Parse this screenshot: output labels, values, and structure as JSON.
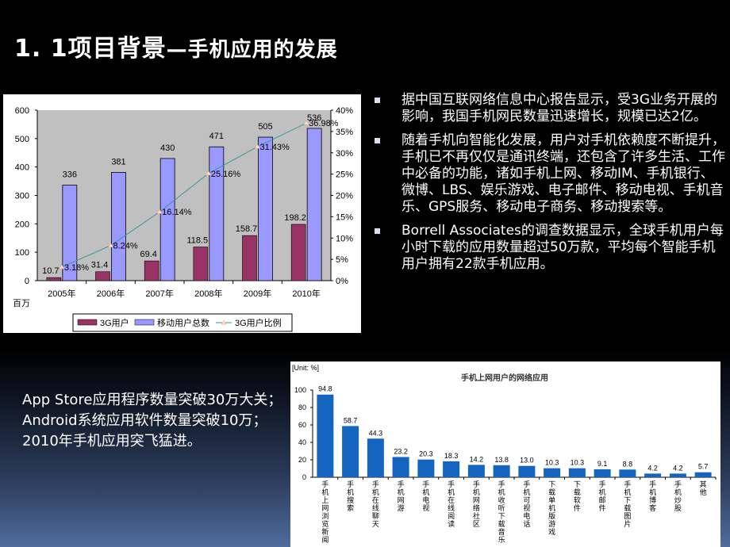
{
  "slide": {
    "title_main": "1. 1项目背景",
    "title_sub": "—手机应用的发展"
  },
  "bullets": [
    {
      "text": "据中国互联网络信息中心报告显示，受3G业务开展的影响，我国手机网民数量迅速增长，规模已达2亿。"
    },
    {
      "text": "随着手机向智能化发展，用户对手机依赖度不断提升，手机已不再仅仅是通讯终端，还包含了许多生活、工作中必备的功能，诸如手机上网、移动IM、手机银行、微博、LBS、娱乐游戏、电子邮件、移动电视、手机音乐、GPS服务、移动电子商务、移动搜索等。"
    },
    {
      "text": "Borrell Associates的调查数据显示，全球手机用户每小时下载的应用数量超过50万款，平均每个智能手机用户拥有22款手机应用。"
    }
  ],
  "left_text": {
    "lines": [
      "App Store应用程序数量突破30万大关；",
      "Android系统应用软件数量突破10万；",
      "2010年手机应用突飞猛进。"
    ]
  },
  "colors": {
    "bar_3g": "#993366",
    "bar_total": "#9999ff",
    "line_ratio": "#339999",
    "plot_bg": "#c0c0c0",
    "bar2": "#1464c0"
  },
  "chart_data": [
    {
      "type": "bar",
      "title": "",
      "xlabel": "",
      "ylabel": "百万",
      "y2label": "",
      "categories": [
        "2005年",
        "2006年",
        "2007年",
        "2008年",
        "2009年",
        "2010年"
      ],
      "series": [
        {
          "name": "3G用户",
          "kind": "bar",
          "axis": "left",
          "values": [
            10.7,
            31.4,
            69.4,
            118.5,
            158.7,
            198.2
          ],
          "labels": [
            "10.7",
            "31.4",
            "69.4",
            "118.5",
            "158.7",
            "198.2"
          ]
        },
        {
          "name": "移动用户总数",
          "kind": "bar",
          "axis": "left",
          "values": [
            336,
            381,
            430,
            471,
            505,
            536
          ],
          "labels": [
            "336",
            "381",
            "430",
            "471",
            "505",
            "536"
          ]
        },
        {
          "name": "3G用户比例",
          "kind": "line",
          "axis": "right",
          "values": [
            3.18,
            8.24,
            16.14,
            25.16,
            31.43,
            36.98
          ],
          "labels": [
            "3.18%",
            "8.24%",
            "16.14%",
            "25.16%",
            "31.43%",
            "36.98%"
          ]
        }
      ],
      "ylim": [
        0,
        600
      ],
      "yticks": [
        "0",
        "100",
        "200",
        "300",
        "400",
        "500",
        "600"
      ],
      "y2lim": [
        0,
        40
      ],
      "y2ticks": [
        "0%",
        "5%",
        "10%",
        "15%",
        "20%",
        "25%",
        "30%",
        "35%",
        "40%"
      ],
      "legend": [
        "3G用户",
        "移动用户总数",
        "3G用户比例"
      ],
      "legend_position": "bottom",
      "grid": false
    },
    {
      "type": "bar",
      "title": "手机上网用户的网络应用",
      "unit": "[Unit: %]",
      "xlabel": "",
      "ylabel": "",
      "categories": [
        "手机上网浏览新闻",
        "手机搜索",
        "手机在线聊天",
        "手机网游",
        "手机电视",
        "手机在线阅读",
        "手机网络社区",
        "手机收听下载音乐",
        "手机可视电话",
        "下载单机版游戏",
        "下载软件",
        "手机邮件",
        "手机下载图片",
        "手机博客",
        "手机炒股",
        "其他"
      ],
      "values": [
        94.8,
        58.7,
        44.3,
        23.2,
        20.3,
        18.3,
        14.2,
        13.8,
        13.0,
        10.3,
        10.3,
        9.1,
        8.8,
        4.2,
        4.2,
        5.7
      ],
      "labels": [
        "94.8",
        "58.7",
        "44.3",
        "23.2",
        "20.3",
        "18.3",
        "14.2",
        "13.8",
        "13.0",
        "10.3",
        "10.3",
        "9.1",
        "8.8",
        "4.2",
        "4.2",
        "5.7"
      ],
      "ylim": [
        0,
        100
      ],
      "yticks": [
        "0",
        "20",
        "40",
        "60",
        "80",
        "100"
      ],
      "grid": false
    }
  ]
}
